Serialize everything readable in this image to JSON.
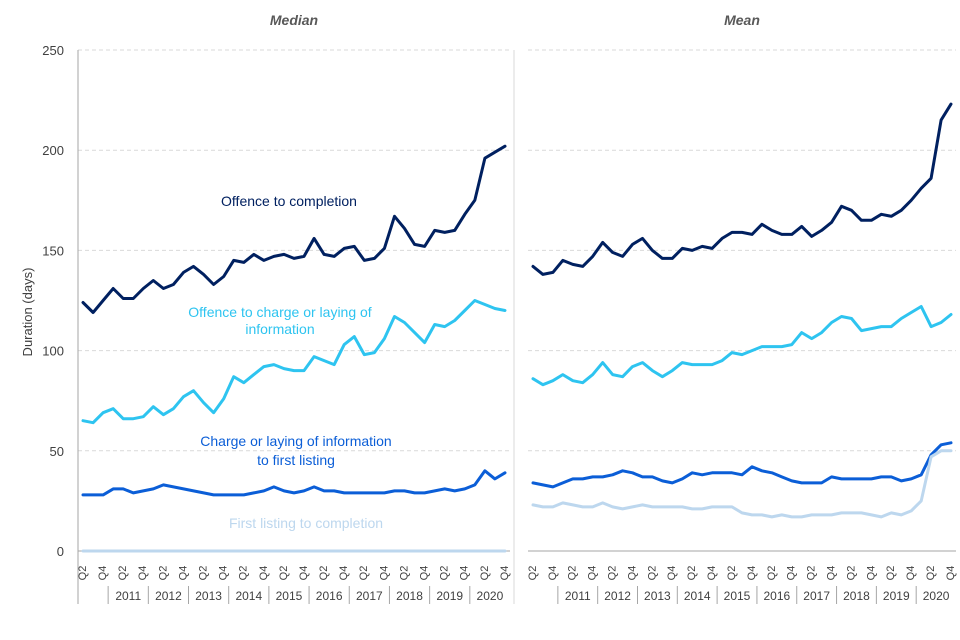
{
  "chart_data": {
    "type": "line",
    "ylabel": "Duration (days)",
    "ylim": [
      0,
      250
    ],
    "yticks": [
      0,
      50,
      100,
      150,
      200,
      250
    ],
    "grid": true,
    "quarters": [
      "Q2",
      "Q3",
      "Q4",
      "Q1",
      "Q2",
      "Q3",
      "Q4",
      "Q1",
      "Q2",
      "Q3",
      "Q4",
      "Q1",
      "Q2",
      "Q3",
      "Q4",
      "Q1",
      "Q2",
      "Q3",
      "Q4",
      "Q1",
      "Q2",
      "Q3",
      "Q4",
      "Q1",
      "Q2",
      "Q3",
      "Q4",
      "Q1",
      "Q2",
      "Q3",
      "Q4",
      "Q1",
      "Q2",
      "Q3",
      "Q4",
      "Q1",
      "Q2",
      "Q3",
      "Q4",
      "Q1",
      "Q2",
      "Q3",
      "Q4"
    ],
    "years": [
      "2011",
      "2012",
      "2013",
      "2014",
      "2015",
      "2016",
      "2017",
      "2018",
      "2019",
      "2020"
    ],
    "colors": {
      "offence_to_completion": "#002060",
      "offence_to_charge": "#2EC4F0",
      "charge_to_first_listing": "#0B5ED7",
      "first_listing_to_completion": "#BDD7EE"
    },
    "panels": [
      {
        "title": "Median",
        "series": [
          {
            "name": "Offence to completion",
            "label_lines": [
              "Offence to completion"
            ],
            "values": [
              124,
              119,
              125,
              131,
              126,
              126,
              131,
              135,
              131,
              133,
              139,
              142,
              138,
              133,
              137,
              145,
              144,
              148,
              145,
              147,
              148,
              146,
              147,
              156,
              148,
              147,
              151,
              152,
              145,
              146,
              151,
              167,
              161,
              153,
              152,
              160,
              159,
              160,
              168,
              175,
              196,
              199,
              202
            ]
          },
          {
            "name": "Offence to charge or laying of information",
            "label_lines": [
              "Offence to charge or laying of",
              "information"
            ],
            "values": [
              65,
              64,
              69,
              71,
              66,
              66,
              67,
              72,
              68,
              71,
              77,
              80,
              74,
              69,
              76,
              87,
              84,
              88,
              92,
              93,
              91,
              90,
              90,
              97,
              95,
              93,
              103,
              107,
              98,
              99,
              106,
              117,
              114,
              109,
              104,
              113,
              112,
              115,
              120,
              125,
              123,
              121,
              120
            ]
          },
          {
            "name": "Charge or laying of information to first listing",
            "label_lines": [
              "Charge or laying of information",
              "to first listing"
            ],
            "values": [
              28,
              28,
              28,
              31,
              31,
              29,
              30,
              31,
              33,
              32,
              31,
              30,
              29,
              28,
              28,
              28,
              28,
              29,
              30,
              32,
              30,
              29,
              30,
              32,
              30,
              30,
              29,
              29,
              29,
              29,
              29,
              30,
              30,
              29,
              29,
              30,
              31,
              30,
              31,
              33,
              40,
              36,
              39
            ]
          },
          {
            "name": "First listing to completion",
            "label_lines": [
              "First listing to completion"
            ],
            "values": [
              0,
              0,
              0,
              0,
              0,
              0,
              0,
              0,
              0,
              0,
              0,
              0,
              0,
              0,
              0,
              0,
              0,
              0,
              0,
              0,
              0,
              0,
              0,
              0,
              0,
              0,
              0,
              0,
              0,
              0,
              0,
              0,
              0,
              0,
              0,
              0,
              0,
              0,
              0,
              0,
              0,
              0,
              0
            ]
          }
        ]
      },
      {
        "title": "Mean",
        "series": [
          {
            "name": "Offence to completion",
            "values": [
              142,
              138,
              139,
              145,
              143,
              142,
              147,
              154,
              149,
              147,
              153,
              156,
              150,
              146,
              146,
              151,
              150,
              152,
              151,
              156,
              159,
              159,
              158,
              163,
              160,
              158,
              158,
              162,
              157,
              160,
              164,
              172,
              170,
              165,
              165,
              168,
              167,
              170,
              175,
              181,
              186,
              215,
              223
            ]
          },
          {
            "name": "Offence to charge or laying of information",
            "values": [
              86,
              83,
              85,
              88,
              85,
              84,
              88,
              94,
              88,
              87,
              92,
              94,
              90,
              87,
              90,
              94,
              93,
              93,
              93,
              95,
              99,
              98,
              100,
              102,
              102,
              102,
              103,
              109,
              106,
              109,
              114,
              117,
              116,
              110,
              111,
              112,
              112,
              116,
              119,
              122,
              112,
              114,
              118
            ]
          },
          {
            "name": "Charge or laying of information to first listing",
            "values": [
              34,
              33,
              32,
              34,
              36,
              36,
              37,
              37,
              38,
              40,
              39,
              37,
              37,
              35,
              34,
              36,
              39,
              38,
              39,
              39,
              39,
              38,
              42,
              40,
              39,
              37,
              35,
              34,
              34,
              34,
              37,
              36,
              36,
              36,
              36,
              37,
              37,
              35,
              36,
              38,
              48,
              53,
              54
            ]
          },
          {
            "name": "First listing to completion",
            "values": [
              23,
              22,
              22,
              24,
              23,
              22,
              22,
              24,
              22,
              21,
              22,
              23,
              22,
              22,
              22,
              22,
              21,
              21,
              22,
              22,
              22,
              19,
              18,
              18,
              17,
              18,
              17,
              17,
              18,
              18,
              18,
              19,
              19,
              19,
              18,
              17,
              19,
              18,
              20,
              25,
              47,
              50,
              50
            ]
          }
        ]
      }
    ]
  }
}
